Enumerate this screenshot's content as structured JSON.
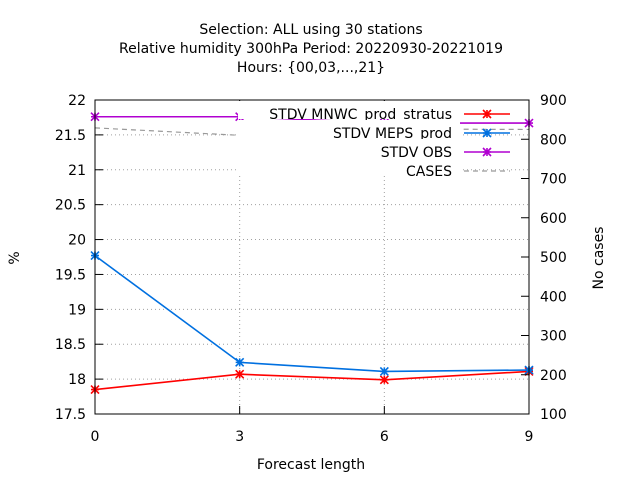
{
  "chart_data": {
    "type": "line",
    "title_lines": [
      "Selection: ALL using    30 stations",
      "Relative humidity 300hPa   Period: 20220930-20221019",
      "Hours: {00,03,...,21}"
    ],
    "xlabel": "Forecast length",
    "ylabel": "%",
    "y2label": "No cases",
    "x": [
      0,
      3,
      6,
      9
    ],
    "xlim": [
      0,
      9
    ],
    "xticks": [
      "0",
      "3",
      "6",
      "9"
    ],
    "ylim": [
      17.5,
      22
    ],
    "yticks": [
      "17.5",
      "18",
      "18.5",
      "19",
      "19.5",
      "20",
      "20.5",
      "21",
      "21.5",
      "22"
    ],
    "y2lim": [
      100,
      900
    ],
    "y2ticks": [
      "100",
      "200",
      "300",
      "400",
      "500",
      "600",
      "700",
      "800",
      "900"
    ],
    "grid": true,
    "legend_position": "top-right",
    "series": [
      {
        "name": "STDV MNWC_prod_stratus",
        "axis": "y",
        "color": "#ff0000",
        "marker": "x",
        "values": [
          17.85,
          18.07,
          17.99,
          18.11
        ]
      },
      {
        "name": "STDV MEPS_prod",
        "axis": "y",
        "color": "#0070e0",
        "marker": "x",
        "values": [
          19.77,
          18.24,
          18.11,
          18.13
        ]
      },
      {
        "name": "STDV OBS",
        "axis": "y",
        "color": "#b000d0",
        "marker": "x",
        "values": [
          21.76,
          21.76,
          21.67,
          21.67
        ]
      },
      {
        "name": "CASES",
        "axis": "y2",
        "color": "#999999",
        "dash": true,
        "values": [
          829,
          810,
          826,
          825
        ]
      }
    ]
  }
}
